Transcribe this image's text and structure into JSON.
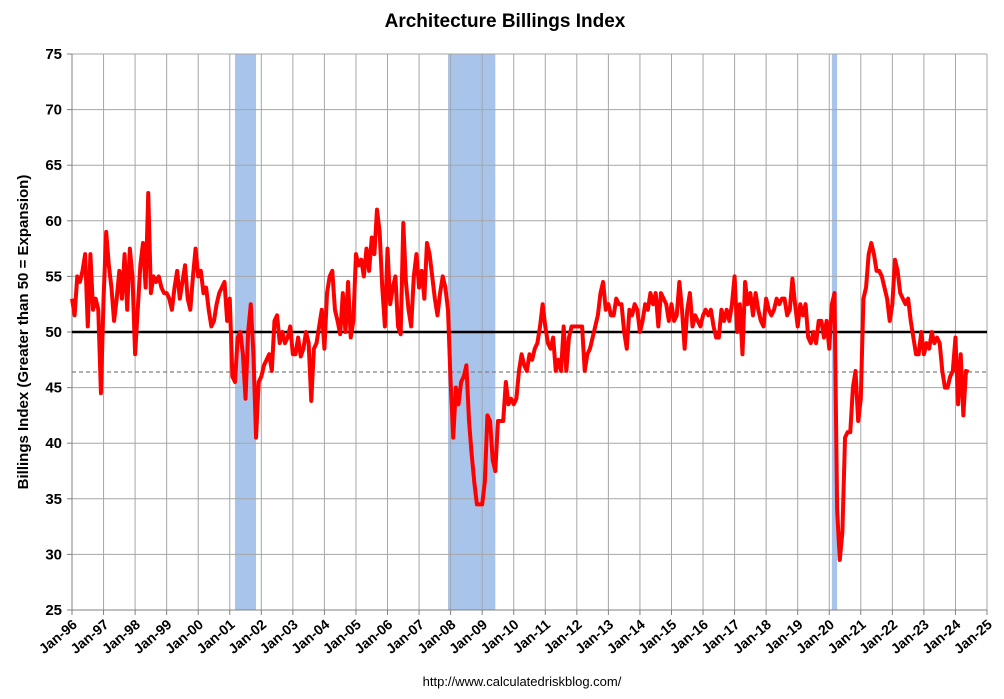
{
  "chart_data": {
    "type": "line",
    "title": "Architecture Billings Index",
    "ylabel": "Billings Index (Greater than 50 = Expansion)",
    "source": "http://www.calculatedriskblog.com/",
    "ylim": [
      25,
      75
    ],
    "yticks": [
      25,
      30,
      35,
      40,
      45,
      50,
      55,
      60,
      65,
      70,
      75
    ],
    "xlim": [
      "1996-01",
      "2025-01"
    ],
    "xticks": [
      {
        "value": "1996-01",
        "label": "Jan-96"
      },
      {
        "value": "1997-01",
        "label": "Jan-97"
      },
      {
        "value": "1998-01",
        "label": "Jan-98"
      },
      {
        "value": "1999-01",
        "label": "Jan-99"
      },
      {
        "value": "2000-01",
        "label": "Jan-00"
      },
      {
        "value": "2001-01",
        "label": "Jan-01"
      },
      {
        "value": "2002-01",
        "label": "Jan-02"
      },
      {
        "value": "2003-01",
        "label": "Jan-03"
      },
      {
        "value": "2004-01",
        "label": "Jan-04"
      },
      {
        "value": "2005-01",
        "label": "Jan-05"
      },
      {
        "value": "2006-01",
        "label": "Jan-06"
      },
      {
        "value": "2007-01",
        "label": "Jan-07"
      },
      {
        "value": "2008-01",
        "label": "Jan-08"
      },
      {
        "value": "2009-01",
        "label": "Jan-09"
      },
      {
        "value": "2010-01",
        "label": "Jan-10"
      },
      {
        "value": "2011-01",
        "label": "Jan-11"
      },
      {
        "value": "2012-01",
        "label": "Jan-12"
      },
      {
        "value": "2013-01",
        "label": "Jan-13"
      },
      {
        "value": "2014-01",
        "label": "Jan-14"
      },
      {
        "value": "2015-01",
        "label": "Jan-15"
      },
      {
        "value": "2016-01",
        "label": "Jan-16"
      },
      {
        "value": "2017-01",
        "label": "Jan-17"
      },
      {
        "value": "2018-01",
        "label": "Jan-18"
      },
      {
        "value": "2019-01",
        "label": "Jan-19"
      },
      {
        "value": "2020-01",
        "label": "Jan-20"
      },
      {
        "value": "2021-01",
        "label": "Jan-21"
      },
      {
        "value": "2022-01",
        "label": "Jan-22"
      },
      {
        "value": "2023-01",
        "label": "Jan-23"
      },
      {
        "value": "2024-01",
        "label": "Jan-24"
      },
      {
        "value": "2025-01",
        "label": "Jan-25"
      }
    ],
    "grid": true,
    "recessions": [
      [
        "2001-03",
        "2001-11"
      ],
      [
        "2007-12",
        "2009-06"
      ],
      [
        "2020-02",
        "2020-04"
      ]
    ],
    "recession_color": "#a9c4eb",
    "reference_lines": [
      {
        "value": 50,
        "style": "solid",
        "color": "#000000"
      },
      {
        "value": 46.4,
        "style": "dashed",
        "color": "#808080"
      }
    ],
    "x": [
      "1996-01",
      "1996-02",
      "1996-03",
      "1996-04",
      "1996-05",
      "1996-06",
      "1996-07",
      "1996-08",
      "1996-09",
      "1996-10",
      "1996-11",
      "1996-12",
      "1997-01",
      "1997-02",
      "1997-03",
      "1997-04",
      "1997-05",
      "1997-06",
      "1997-07",
      "1997-08",
      "1997-09",
      "1997-10",
      "1997-11",
      "1997-12",
      "1998-01",
      "1998-02",
      "1998-03",
      "1998-04",
      "1998-05",
      "1998-06",
      "1998-07",
      "1998-08",
      "1998-09",
      "1998-10",
      "1998-11",
      "1998-12",
      "1999-01",
      "1999-02",
      "1999-03",
      "1999-04",
      "1999-05",
      "1999-06",
      "1999-07",
      "1999-08",
      "1999-09",
      "1999-10",
      "1999-11",
      "1999-12",
      "2000-01",
      "2000-02",
      "2000-03",
      "2000-04",
      "2000-05",
      "2000-06",
      "2000-07",
      "2000-08",
      "2000-09",
      "2000-10",
      "2000-11",
      "2000-12",
      "2001-01",
      "2001-02",
      "2001-03",
      "2001-04",
      "2001-05",
      "2001-06",
      "2001-07",
      "2001-08",
      "2001-09",
      "2001-10",
      "2001-11",
      "2001-12",
      "2002-01",
      "2002-02",
      "2002-03",
      "2002-04",
      "2002-05",
      "2002-06",
      "2002-07",
      "2002-08",
      "2002-09",
      "2002-10",
      "2002-11",
      "2002-12",
      "2003-01",
      "2003-02",
      "2003-03",
      "2003-04",
      "2003-05",
      "2003-06",
      "2003-07",
      "2003-08",
      "2003-09",
      "2003-10",
      "2003-11",
      "2003-12",
      "2004-01",
      "2004-02",
      "2004-03",
      "2004-04",
      "2004-05",
      "2004-06",
      "2004-07",
      "2004-08",
      "2004-09",
      "2004-10",
      "2004-11",
      "2004-12",
      "2005-01",
      "2005-02",
      "2005-03",
      "2005-04",
      "2005-05",
      "2005-06",
      "2005-07",
      "2005-08",
      "2005-09",
      "2005-10",
      "2005-11",
      "2005-12",
      "2006-01",
      "2006-02",
      "2006-03",
      "2006-04",
      "2006-05",
      "2006-06",
      "2006-07",
      "2006-08",
      "2006-09",
      "2006-10",
      "2006-11",
      "2006-12",
      "2007-01",
      "2007-02",
      "2007-03",
      "2007-04",
      "2007-05",
      "2007-06",
      "2007-07",
      "2007-08",
      "2007-09",
      "2007-10",
      "2007-11",
      "2007-12",
      "2008-01",
      "2008-02",
      "2008-03",
      "2008-04",
      "2008-05",
      "2008-06",
      "2008-07",
      "2008-08",
      "2008-09",
      "2008-10",
      "2008-11",
      "2008-12",
      "2009-01",
      "2009-02",
      "2009-03",
      "2009-04",
      "2009-05",
      "2009-06",
      "2009-07",
      "2009-08",
      "2009-09",
      "2009-10",
      "2009-11",
      "2009-12",
      "2010-01",
      "2010-02",
      "2010-03",
      "2010-04",
      "2010-05",
      "2010-06",
      "2010-07",
      "2010-08",
      "2010-09",
      "2010-10",
      "2010-11",
      "2010-12",
      "2011-01",
      "2011-02",
      "2011-03",
      "2011-04",
      "2011-05",
      "2011-06",
      "2011-07",
      "2011-08",
      "2011-09",
      "2011-10",
      "2011-11",
      "2011-12",
      "2012-01",
      "2012-02",
      "2012-03",
      "2012-04",
      "2012-05",
      "2012-06",
      "2012-07",
      "2012-08",
      "2012-09",
      "2012-10",
      "2012-11",
      "2012-12",
      "2013-01",
      "2013-02",
      "2013-03",
      "2013-04",
      "2013-05",
      "2013-06",
      "2013-07",
      "2013-08",
      "2013-09",
      "2013-10",
      "2013-11",
      "2013-12",
      "2014-01",
      "2014-02",
      "2014-03",
      "2014-04",
      "2014-05",
      "2014-06",
      "2014-07",
      "2014-08",
      "2014-09",
      "2014-10",
      "2014-11",
      "2014-12",
      "2015-01",
      "2015-02",
      "2015-03",
      "2015-04",
      "2015-05",
      "2015-06",
      "2015-07",
      "2015-08",
      "2015-09",
      "2015-10",
      "2015-11",
      "2015-12",
      "2016-01",
      "2016-02",
      "2016-03",
      "2016-04",
      "2016-05",
      "2016-06",
      "2016-07",
      "2016-08",
      "2016-09",
      "2016-10",
      "2016-11",
      "2016-12",
      "2017-01",
      "2017-02",
      "2017-03",
      "2017-04",
      "2017-05",
      "2017-06",
      "2017-07",
      "2017-08",
      "2017-09",
      "2017-10",
      "2017-11",
      "2017-12",
      "2018-01",
      "2018-02",
      "2018-03",
      "2018-04",
      "2018-05",
      "2018-06",
      "2018-07",
      "2018-08",
      "2018-09",
      "2018-10",
      "2018-11",
      "2018-12",
      "2019-01",
      "2019-02",
      "2019-03",
      "2019-04",
      "2019-05",
      "2019-06",
      "2019-07",
      "2019-08",
      "2019-09",
      "2019-10",
      "2019-11",
      "2019-12",
      "2020-01",
      "2020-02",
      "2020-03",
      "2020-04",
      "2020-05",
      "2020-06",
      "2020-07",
      "2020-08",
      "2020-09",
      "2020-10",
      "2020-11",
      "2020-12",
      "2021-01",
      "2021-02",
      "2021-03",
      "2021-04",
      "2021-05",
      "2021-06",
      "2021-07",
      "2021-08",
      "2021-09",
      "2021-10",
      "2021-11",
      "2021-12",
      "2022-01",
      "2022-02",
      "2022-03",
      "2022-04",
      "2022-05",
      "2022-06",
      "2022-07",
      "2022-08",
      "2022-09",
      "2022-10",
      "2022-11",
      "2022-12",
      "2023-01",
      "2023-02",
      "2023-03",
      "2023-04",
      "2023-05",
      "2023-06",
      "2023-07",
      "2023-08",
      "2023-09",
      "2023-10",
      "2023-11",
      "2023-12",
      "2024-01",
      "2024-02",
      "2024-03",
      "2024-04",
      "2024-05",
      "2024-06"
    ],
    "series": [
      {
        "color": "#ff0000",
        "values": [
          53,
          51.5,
          55,
          54.5,
          55.5,
          57,
          50.5,
          57,
          52,
          53,
          52,
          44.5,
          53,
          59,
          56,
          54,
          51,
          53,
          55.5,
          53,
          57,
          52,
          57.5,
          55,
          48,
          52,
          56,
          58,
          54,
          62.5,
          53.5,
          55,
          54.5,
          55,
          54,
          53.5,
          53.5,
          53,
          52,
          54,
          55.5,
          53,
          54.5,
          56,
          53,
          52,
          55,
          57.5,
          55,
          55.5,
          53.5,
          54,
          52,
          50.5,
          51,
          52.5,
          53.5,
          54,
          54.5,
          51,
          53,
          46,
          45.5,
          49.5,
          50,
          48,
          44,
          50,
          52.5,
          48,
          40.5,
          45.5,
          46,
          47,
          47.5,
          48,
          46.5,
          51,
          51.5,
          49,
          50,
          49,
          49.5,
          50.5,
          48,
          48,
          49.5,
          47.8,
          48.5,
          50,
          49,
          43.8,
          48.5,
          49,
          50.5,
          52,
          48.5,
          53.5,
          55,
          55.5,
          52,
          51,
          49.8,
          53.5,
          50,
          54.5,
          49.5,
          51,
          57,
          56,
          56.5,
          55,
          57.5,
          55.5,
          58.5,
          57,
          61,
          59,
          54,
          50.5,
          57.5,
          52.5,
          54,
          55,
          50.5,
          49.8,
          59.8,
          54.5,
          52,
          50.5,
          55,
          57,
          54,
          55.5,
          53,
          58,
          57,
          55,
          53,
          51.5,
          53.5,
          55,
          54,
          52,
          45.5,
          40.5,
          45,
          43.5,
          45.5,
          46,
          47,
          42,
          39,
          36.5,
          34.5,
          34.5,
          34.5,
          36.5,
          42.5,
          42,
          38.5,
          37.5,
          42,
          42,
          42,
          45.5,
          43.5,
          44,
          43.5,
          44,
          46.5,
          48,
          47,
          46.5,
          48,
          47.5,
          48.5,
          49,
          50.5,
          52.5,
          50.5,
          49,
          48.5,
          49.5,
          46.5,
          47.5,
          46.5,
          50.5,
          46.5,
          49.5,
          50.5,
          50.5,
          50.5,
          50.5,
          50.5,
          46.5,
          48,
          48.5,
          49.5,
          50.5,
          51.5,
          53.5,
          54.5,
          52,
          52.5,
          51.5,
          51.5,
          53,
          52.5,
          52.5,
          50,
          48.5,
          52,
          51.5,
          52.5,
          52,
          50,
          51,
          52.5,
          52,
          53.5,
          52.5,
          53.5,
          50.5,
          53.5,
          53,
          52.5,
          51,
          52.5,
          51,
          51.5,
          54.5,
          52,
          48.5,
          52,
          53.5,
          50.5,
          51.5,
          51,
          50.5,
          51.5,
          52,
          51.5,
          52,
          50.5,
          49.5,
          49.5,
          52,
          51,
          52,
          51,
          52.5,
          55,
          50,
          52.5,
          48,
          54.5,
          52.5,
          53.5,
          51.5,
          53.5,
          52,
          51,
          50.5,
          53,
          52,
          51.5,
          52,
          53,
          52.5,
          53,
          53,
          51.5,
          52,
          54.8,
          52.5,
          50.5,
          52.5,
          51.5,
          52.5,
          49.5,
          49,
          50,
          49,
          51,
          51,
          49.5,
          51,
          48.5,
          52.5,
          53.5,
          34,
          29.5,
          32,
          40.5,
          41,
          41,
          45,
          46.5,
          42,
          44,
          53,
          54,
          57,
          58,
          57,
          55.5,
          55.5,
          55,
          54,
          53,
          51,
          52.5,
          56.5,
          55.5,
          53.5,
          53,
          52.5,
          53,
          51,
          49.5,
          48,
          48,
          50,
          48,
          49,
          48.5,
          50,
          49,
          49.5,
          49,
          46.5,
          45,
          45,
          46,
          46.5,
          49.5,
          43.5,
          48,
          42.5,
          46.5,
          46.4
        ]
      }
    ]
  }
}
